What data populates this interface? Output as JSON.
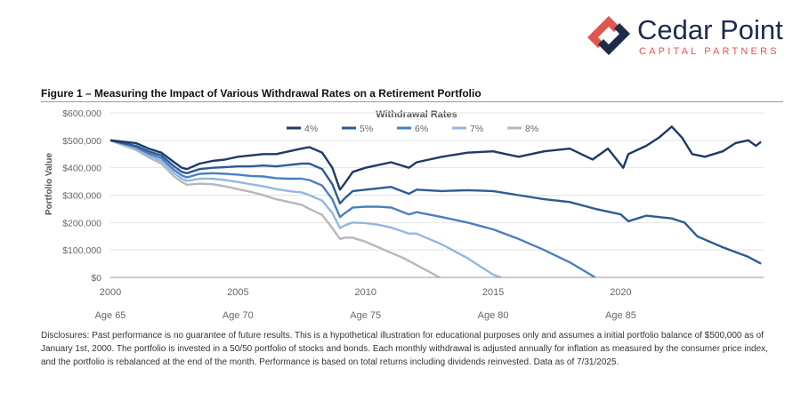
{
  "brand": {
    "name": "Cedar Point",
    "tagline": "CAPITAL PARTNERS",
    "colors": {
      "navy": "#1f2a4d",
      "coral": "#e0574f"
    }
  },
  "figure": {
    "title": "Figure 1 – Measuring the Impact of Various Withdrawal Rates on a Retirement Portfolio"
  },
  "chart_data": {
    "type": "line",
    "title": "",
    "ylabel": "Portfolio Value",
    "xlabel": "",
    "legend_title": "Withdrawal Rates",
    "legend_position": "top-center",
    "xlim": [
      2000,
      2025.6
    ],
    "ylim": [
      0,
      600000
    ],
    "grid": "horizontal",
    "y_ticks": [
      0,
      100000,
      200000,
      300000,
      400000,
      500000,
      600000
    ],
    "y_tick_labels": [
      "$0",
      "$100,000",
      "$200,000",
      "$300,000",
      "$400,000",
      "$500,000",
      "$600,000"
    ],
    "x_ticks": [
      2000,
      2005,
      2010,
      2015,
      2020
    ],
    "x_tick_labels": [
      "2000",
      "2005",
      "2010",
      "2015",
      "2020"
    ],
    "age_labels": [
      "Age 65",
      "Age 70",
      "Age 75",
      "Age 80",
      "Age 85"
    ],
    "series": [
      {
        "name": "4%",
        "color": "#1e3a66",
        "x": [
          2000,
          2000.5,
          2001,
          2001.5,
          2002,
          2002.5,
          2002.8,
          2003,
          2003.5,
          2004,
          2004.5,
          2005,
          2005.5,
          2006,
          2006.5,
          2007,
          2007.5,
          2007.8,
          2008.3,
          2008.7,
          2009.0,
          2009.2,
          2009.5,
          2010,
          2010.5,
          2011,
          2011.7,
          2012,
          2013,
          2014,
          2015,
          2015.5,
          2016,
          2017,
          2018,
          2018.9,
          2019.5,
          2020.1,
          2020.3,
          2021,
          2021.5,
          2022,
          2022.4,
          2022.8,
          2023.3,
          2024,
          2024.5,
          2025,
          2025.3,
          2025.5
        ],
        "y": [
          500000,
          495000,
          490000,
          470000,
          455000,
          420000,
          400000,
          395000,
          415000,
          425000,
          430000,
          440000,
          445000,
          450000,
          450000,
          460000,
          470000,
          475000,
          455000,
          400000,
          320000,
          345000,
          385000,
          400000,
          410000,
          420000,
          400000,
          420000,
          440000,
          455000,
          460000,
          450000,
          440000,
          460000,
          470000,
          430000,
          470000,
          400000,
          450000,
          480000,
          510000,
          550000,
          510000,
          450000,
          440000,
          460000,
          490000,
          500000,
          480000,
          495000
        ]
      },
      {
        "name": "5%",
        "color": "#2e5b94",
        "x": [
          2000,
          2000.5,
          2001,
          2001.5,
          2002,
          2002.5,
          2002.8,
          2003,
          2003.5,
          2004,
          2004.5,
          2005,
          2005.5,
          2006,
          2006.5,
          2007,
          2007.5,
          2007.8,
          2008.3,
          2008.7,
          2009.0,
          2009.2,
          2009.5,
          2010,
          2010.5,
          2011,
          2011.7,
          2012,
          2013,
          2014,
          2015,
          2016,
          2017,
          2018,
          2019,
          2020,
          2020.3,
          2021,
          2022,
          2022.5,
          2023,
          2024,
          2025,
          2025.5
        ],
        "y": [
          500000,
          490000,
          480000,
          460000,
          445000,
          405000,
          385000,
          380000,
          395000,
          400000,
          402000,
          405000,
          405000,
          408000,
          405000,
          410000,
          415000,
          415000,
          395000,
          340000,
          270000,
          290000,
          315000,
          320000,
          325000,
          330000,
          305000,
          320000,
          315000,
          318000,
          315000,
          300000,
          285000,
          275000,
          250000,
          230000,
          205000,
          225000,
          215000,
          200000,
          150000,
          110000,
          75000,
          50000
        ]
      },
      {
        "name": "6%",
        "color": "#4a7fc1",
        "x": [
          2000,
          2000.5,
          2001,
          2001.5,
          2002,
          2002.5,
          2002.8,
          2003,
          2003.5,
          2004,
          2004.5,
          2005,
          2005.5,
          2006,
          2006.5,
          2007,
          2007.5,
          2007.8,
          2008.3,
          2008.7,
          2009.0,
          2009.2,
          2009.5,
          2010,
          2010.5,
          2011,
          2011.7,
          2012,
          2013,
          2014,
          2015,
          2016,
          2017,
          2018,
          2019
        ],
        "y": [
          500000,
          488000,
          475000,
          452000,
          435000,
          392000,
          372000,
          365000,
          378000,
          380000,
          378000,
          375000,
          370000,
          368000,
          362000,
          360000,
          360000,
          355000,
          335000,
          285000,
          220000,
          235000,
          255000,
          258000,
          258000,
          255000,
          230000,
          238000,
          220000,
          200000,
          175000,
          140000,
          100000,
          55000,
          0
        ]
      },
      {
        "name": "7%",
        "color": "#93b7e0",
        "x": [
          2000,
          2000.5,
          2001,
          2001.5,
          2002,
          2002.5,
          2002.8,
          2003,
          2003.5,
          2004,
          2004.5,
          2005,
          2005.5,
          2006,
          2006.5,
          2007,
          2007.5,
          2007.8,
          2008.3,
          2008.7,
          2009.0,
          2009.2,
          2009.5,
          2010,
          2010.5,
          2011,
          2011.7,
          2012,
          2012.5,
          2013,
          2013.5,
          2014,
          2014.5,
          2015,
          2015.3
        ],
        "y": [
          500000,
          485000,
          470000,
          445000,
          425000,
          380000,
          360000,
          352000,
          360000,
          360000,
          355000,
          348000,
          340000,
          332000,
          322000,
          315000,
          310000,
          300000,
          280000,
          235000,
          180000,
          190000,
          200000,
          198000,
          192000,
          182000,
          160000,
          160000,
          140000,
          120000,
          95000,
          70000,
          40000,
          10000,
          0
        ]
      },
      {
        "name": "8%",
        "color": "#b8b8b8",
        "x": [
          2000,
          2000.5,
          2001,
          2001.5,
          2002,
          2002.5,
          2002.8,
          2003,
          2003.5,
          2004,
          2004.5,
          2005,
          2005.5,
          2006,
          2006.5,
          2007,
          2007.5,
          2007.8,
          2008.3,
          2008.7,
          2009.0,
          2009.2,
          2009.5,
          2010,
          2010.5,
          2011,
          2011.5,
          2012,
          2012.5,
          2012.9
        ],
        "y": [
          500000,
          482000,
          465000,
          438000,
          415000,
          368000,
          348000,
          338000,
          342000,
          340000,
          332000,
          322000,
          312000,
          300000,
          285000,
          275000,
          265000,
          250000,
          228000,
          180000,
          140000,
          145000,
          145000,
          130000,
          110000,
          90000,
          70000,
          45000,
          20000,
          0
        ]
      }
    ]
  },
  "disclosure": "Disclosures: Past performance is no guarantee of future results. This is a hypothetical illustration for educational purposes only and assumes a initial portfolio balance of $500,000 as of January 1st, 2000. The portfolio is invested in a 50/50 portfolio of stocks and bonds. Each monthly withdrawal is adjusted annually for inflation as measured by the consumer price index, and the portfolio is rebalanced at the end of the month. Performance is based on total returns including dividends reinvested. Data as of 7/31/2025."
}
